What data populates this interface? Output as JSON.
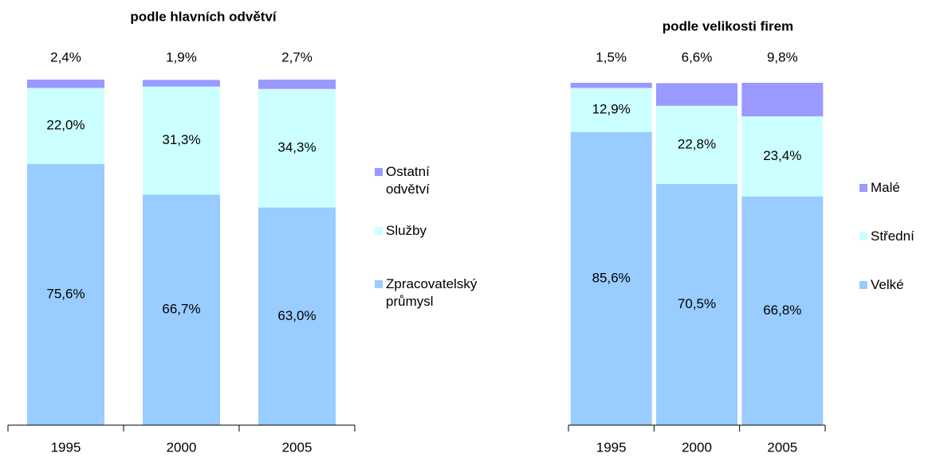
{
  "chart_data": [
    {
      "type": "bar",
      "stacked": true,
      "title": "podle hlavních odvětví",
      "categories": [
        "1995",
        "2000",
        "2005"
      ],
      "series": [
        {
          "name": "Zpracovatelský průmysl",
          "color": "#99ccff",
          "values": [
            75.6,
            66.7,
            63.0
          ],
          "value_labels": [
            "75,6%",
            "66,7%",
            "63,0%"
          ]
        },
        {
          "name": "Služby",
          "color": "#ccffff",
          "values": [
            22.0,
            31.3,
            34.3
          ],
          "value_labels": [
            "22,0%",
            "31,3%",
            "34,3%"
          ]
        },
        {
          "name": "Ostatní odvětví",
          "color": "#9999ff",
          "values": [
            2.4,
            1.9,
            2.7
          ],
          "value_labels": [
            "2,4%",
            "1,9%",
            "2,7%"
          ]
        }
      ],
      "ylim": [
        0,
        100
      ],
      "legend": "right"
    },
    {
      "type": "bar",
      "stacked": true,
      "title": "podle velikosti firem",
      "categories": [
        "1995",
        "2000",
        "2005"
      ],
      "series": [
        {
          "name": "Velké",
          "color": "#99ccff",
          "values": [
            85.6,
            70.5,
            66.8
          ],
          "value_labels": [
            "85,6%",
            "70,5%",
            "66,8%"
          ]
        },
        {
          "name": "Střední",
          "color": "#ccffff",
          "values": [
            12.9,
            22.8,
            23.4
          ],
          "value_labels": [
            "12,9%",
            "22,8%",
            "23,4%"
          ]
        },
        {
          "name": "Malé",
          "color": "#9999ff",
          "values": [
            1.5,
            6.6,
            9.8
          ],
          "value_labels": [
            "1,5%",
            "6,6%",
            "9,8%"
          ]
        }
      ],
      "ylim": [
        0,
        100
      ],
      "legend": "right"
    }
  ]
}
